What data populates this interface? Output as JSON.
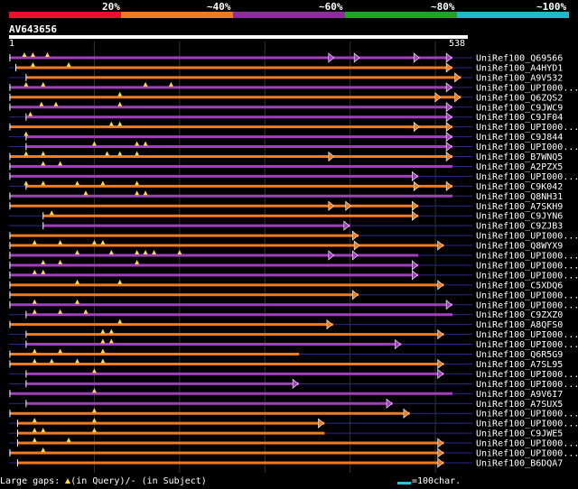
{
  "legend": {
    "labels": [
      "20%",
      "~40%",
      "~60%",
      "~80%",
      "~100%"
    ],
    "colors": [
      "#e8102c",
      "#f07b1e",
      "#8e2c9d",
      "#21a325",
      "#20b9c9"
    ]
  },
  "query": {
    "name": "AV643656",
    "start": "1",
    "end": "538"
  },
  "colors": {
    "orange": "#ef7b22",
    "purple": "#a13fbf",
    "gap": "#ffd54f",
    "thin": "#2a2a8a"
  },
  "chart_data": {
    "type": "alignment-overview",
    "query_length": 538,
    "grid_x": [
      100,
      200,
      300,
      400,
      500
    ],
    "hits": [
      {
        "name": "UniRef100_Q69566",
        "color": "purple",
        "start": 1,
        "end": 520,
        "arrows": [
          380,
          410,
          480,
          518
        ],
        "gaps": [
          18,
          28,
          45
        ]
      },
      {
        "name": "UniRef100_A4HYD1",
        "color": "orange",
        "start": 8,
        "end": 520,
        "arrows": [
          518
        ],
        "gaps": [
          28,
          70
        ]
      },
      {
        "name": "UniRef100_A9V532",
        "color": "orange",
        "start": 20,
        "end": 530,
        "arrows": [
          528
        ],
        "gaps": []
      },
      {
        "name": "UniRef100_UPI000...",
        "color": "purple",
        "start": 1,
        "end": 520,
        "arrows": [
          518
        ],
        "gaps": [
          20,
          40,
          160,
          190
        ]
      },
      {
        "name": "UniRef100_Q6ZQS2",
        "color": "orange",
        "start": 1,
        "end": 530,
        "arrows": [
          505,
          528
        ],
        "gaps": [
          130
        ]
      },
      {
        "name": "UniRef100_C9JWC9",
        "color": "purple",
        "start": 1,
        "end": 520,
        "arrows": [
          518
        ],
        "gaps": [
          38,
          55,
          130
        ]
      },
      {
        "name": "UniRef100_C9JF04",
        "color": "purple",
        "start": 20,
        "end": 520,
        "arrows": [
          518
        ],
        "gaps": [
          25
        ]
      },
      {
        "name": "UniRef100_UPI000...",
        "color": "orange",
        "start": 1,
        "end": 520,
        "arrows": [
          480,
          518
        ],
        "gaps": [
          120,
          130
        ]
      },
      {
        "name": "UniRef100_C9J844",
        "color": "purple",
        "start": 20,
        "end": 520,
        "arrows": [
          518
        ],
        "gaps": [
          20
        ]
      },
      {
        "name": "UniRef100_UPI000...",
        "color": "purple",
        "start": 20,
        "end": 520,
        "arrows": [
          518
        ],
        "gaps": [
          100,
          150,
          160
        ]
      },
      {
        "name": "UniRef100_B7WNQ5",
        "color": "orange",
        "start": 1,
        "end": 520,
        "arrows": [
          380,
          518
        ],
        "gaps": [
          20,
          40,
          115,
          130,
          150
        ]
      },
      {
        "name": "UniRef100_A2PZX5",
        "color": "purple",
        "start": 1,
        "end": 520,
        "arrows": [],
        "gaps": [
          40,
          60
        ]
      },
      {
        "name": "UniRef100_UPI000...",
        "color": "purple",
        "start": 1,
        "end": 480,
        "arrows": [
          478
        ],
        "gaps": []
      },
      {
        "name": "UniRef100_C9K042",
        "color": "orange",
        "start": 20,
        "end": 520,
        "arrows": [
          480,
          518
        ],
        "gaps": [
          20,
          40,
          80,
          110,
          150
        ]
      },
      {
        "name": "UniRef100_Q8NH31",
        "color": "purple",
        "start": 1,
        "end": 520,
        "arrows": [],
        "gaps": [
          90,
          150,
          160
        ]
      },
      {
        "name": "UniRef100_A7SKH9",
        "color": "orange",
        "start": 1,
        "end": 480,
        "arrows": [
          380,
          400,
          478
        ],
        "gaps": []
      },
      {
        "name": "UniRef100_C9JYN6",
        "color": "orange",
        "start": 40,
        "end": 480,
        "arrows": [
          478
        ],
        "gaps": [
          50
        ]
      },
      {
        "name": "UniRef100_C9ZJB3",
        "color": "purple",
        "start": 40,
        "end": 400,
        "arrows": [
          398
        ],
        "gaps": []
      },
      {
        "name": "UniRef100_UPI000...",
        "color": "orange",
        "start": 1,
        "end": 410,
        "arrows": [
          408
        ],
        "gaps": []
      },
      {
        "name": "UniRef100_Q8WYX9",
        "color": "orange",
        "start": 1,
        "end": 510,
        "arrows": [
          410,
          508
        ],
        "gaps": [
          30,
          60,
          100,
          110
        ]
      },
      {
        "name": "UniRef100_UPI000...",
        "color": "purple",
        "start": 1,
        "end": 480,
        "arrows": [
          380,
          408
        ],
        "gaps": [
          80,
          120,
          150,
          160,
          170,
          200
        ]
      },
      {
        "name": "UniRef100_UPI000...",
        "color": "purple",
        "start": 1,
        "end": 480,
        "arrows": [
          478
        ],
        "gaps": [
          40,
          60,
          150
        ]
      },
      {
        "name": "UniRef100_UPI000...",
        "color": "purple",
        "start": 1,
        "end": 480,
        "arrows": [
          478
        ],
        "gaps": [
          30,
          40
        ]
      },
      {
        "name": "UniRef100_C5XDQ6",
        "color": "orange",
        "start": 1,
        "end": 510,
        "arrows": [
          508
        ],
        "gaps": [
          80,
          130
        ]
      },
      {
        "name": "UniRef100_UPI000...",
        "color": "orange",
        "start": 1,
        "end": 410,
        "arrows": [
          408
        ],
        "gaps": []
      },
      {
        "name": "UniRef100_UPI000...",
        "color": "purple",
        "start": 1,
        "end": 520,
        "arrows": [
          518
        ],
        "gaps": [
          30,
          80
        ]
      },
      {
        "name": "UniRef100_C9ZXZ0",
        "color": "purple",
        "start": 20,
        "end": 520,
        "arrows": [],
        "gaps": [
          30,
          60,
          90
        ]
      },
      {
        "name": "UniRef100_A8QFS0",
        "color": "orange",
        "start": 1,
        "end": 380,
        "arrows": [
          378
        ],
        "gaps": [
          130
        ]
      },
      {
        "name": "UniRef100_UPI000...",
        "color": "orange",
        "start": 20,
        "end": 510,
        "arrows": [
          508
        ],
        "gaps": [
          110,
          120
        ]
      },
      {
        "name": "UniRef100_UPI000...",
        "color": "purple",
        "start": 20,
        "end": 460,
        "arrows": [
          458
        ],
        "gaps": [
          110,
          120
        ]
      },
      {
        "name": "UniRef100_Q6R5G9",
        "color": "orange",
        "start": 1,
        "end": 340,
        "arrows": [],
        "gaps": [
          30,
          60,
          110
        ]
      },
      {
        "name": "UniRef100_A7SL95",
        "color": "orange",
        "start": 1,
        "end": 510,
        "arrows": [
          508
        ],
        "gaps": [
          30,
          50,
          80,
          110
        ]
      },
      {
        "name": "UniRef100_UPI000...",
        "color": "purple",
        "start": 20,
        "end": 510,
        "arrows": [
          508
        ],
        "gaps": [
          100
        ]
      },
      {
        "name": "UniRef100_UPI000...",
        "color": "purple",
        "start": 20,
        "end": 340,
        "arrows": [
          338
        ],
        "gaps": []
      },
      {
        "name": "UniRef100_A9V6I7",
        "color": "purple",
        "start": 1,
        "end": 520,
        "arrows": [],
        "gaps": [
          100
        ]
      },
      {
        "name": "UniRef100_A7SUX5",
        "color": "purple",
        "start": 20,
        "end": 450,
        "arrows": [
          448
        ],
        "gaps": []
      },
      {
        "name": "UniRef100_UPI000...",
        "color": "orange",
        "start": 1,
        "end": 470,
        "arrows": [
          468
        ],
        "gaps": [
          100
        ]
      },
      {
        "name": "UniRef100_UPI000...",
        "color": "orange",
        "start": 10,
        "end": 370,
        "arrows": [
          368
        ],
        "gaps": [
          30,
          100
        ]
      },
      {
        "name": "UniRef100_C9JWE5",
        "color": "orange",
        "start": 10,
        "end": 370,
        "arrows": [],
        "gaps": [
          30,
          40,
          100
        ]
      },
      {
        "name": "UniRef100_UPI000...",
        "color": "orange",
        "start": 10,
        "end": 510,
        "arrows": [
          508
        ],
        "gaps": [
          30,
          70
        ]
      },
      {
        "name": "UniRef100_UPI000...",
        "color": "orange",
        "start": 1,
        "end": 510,
        "arrows": [
          508
        ],
        "gaps": [
          40
        ]
      },
      {
        "name": "UniRef100_B6DQA7",
        "color": "orange",
        "start": 10,
        "end": 510,
        "arrows": [
          508
        ],
        "gaps": []
      }
    ]
  },
  "footer": {
    "large_gaps_prefix": "Large gaps:",
    "in_query": "(in Query)/",
    "dash": "-",
    "in_subject": "(in Subject)",
    "scale": "=100char."
  }
}
